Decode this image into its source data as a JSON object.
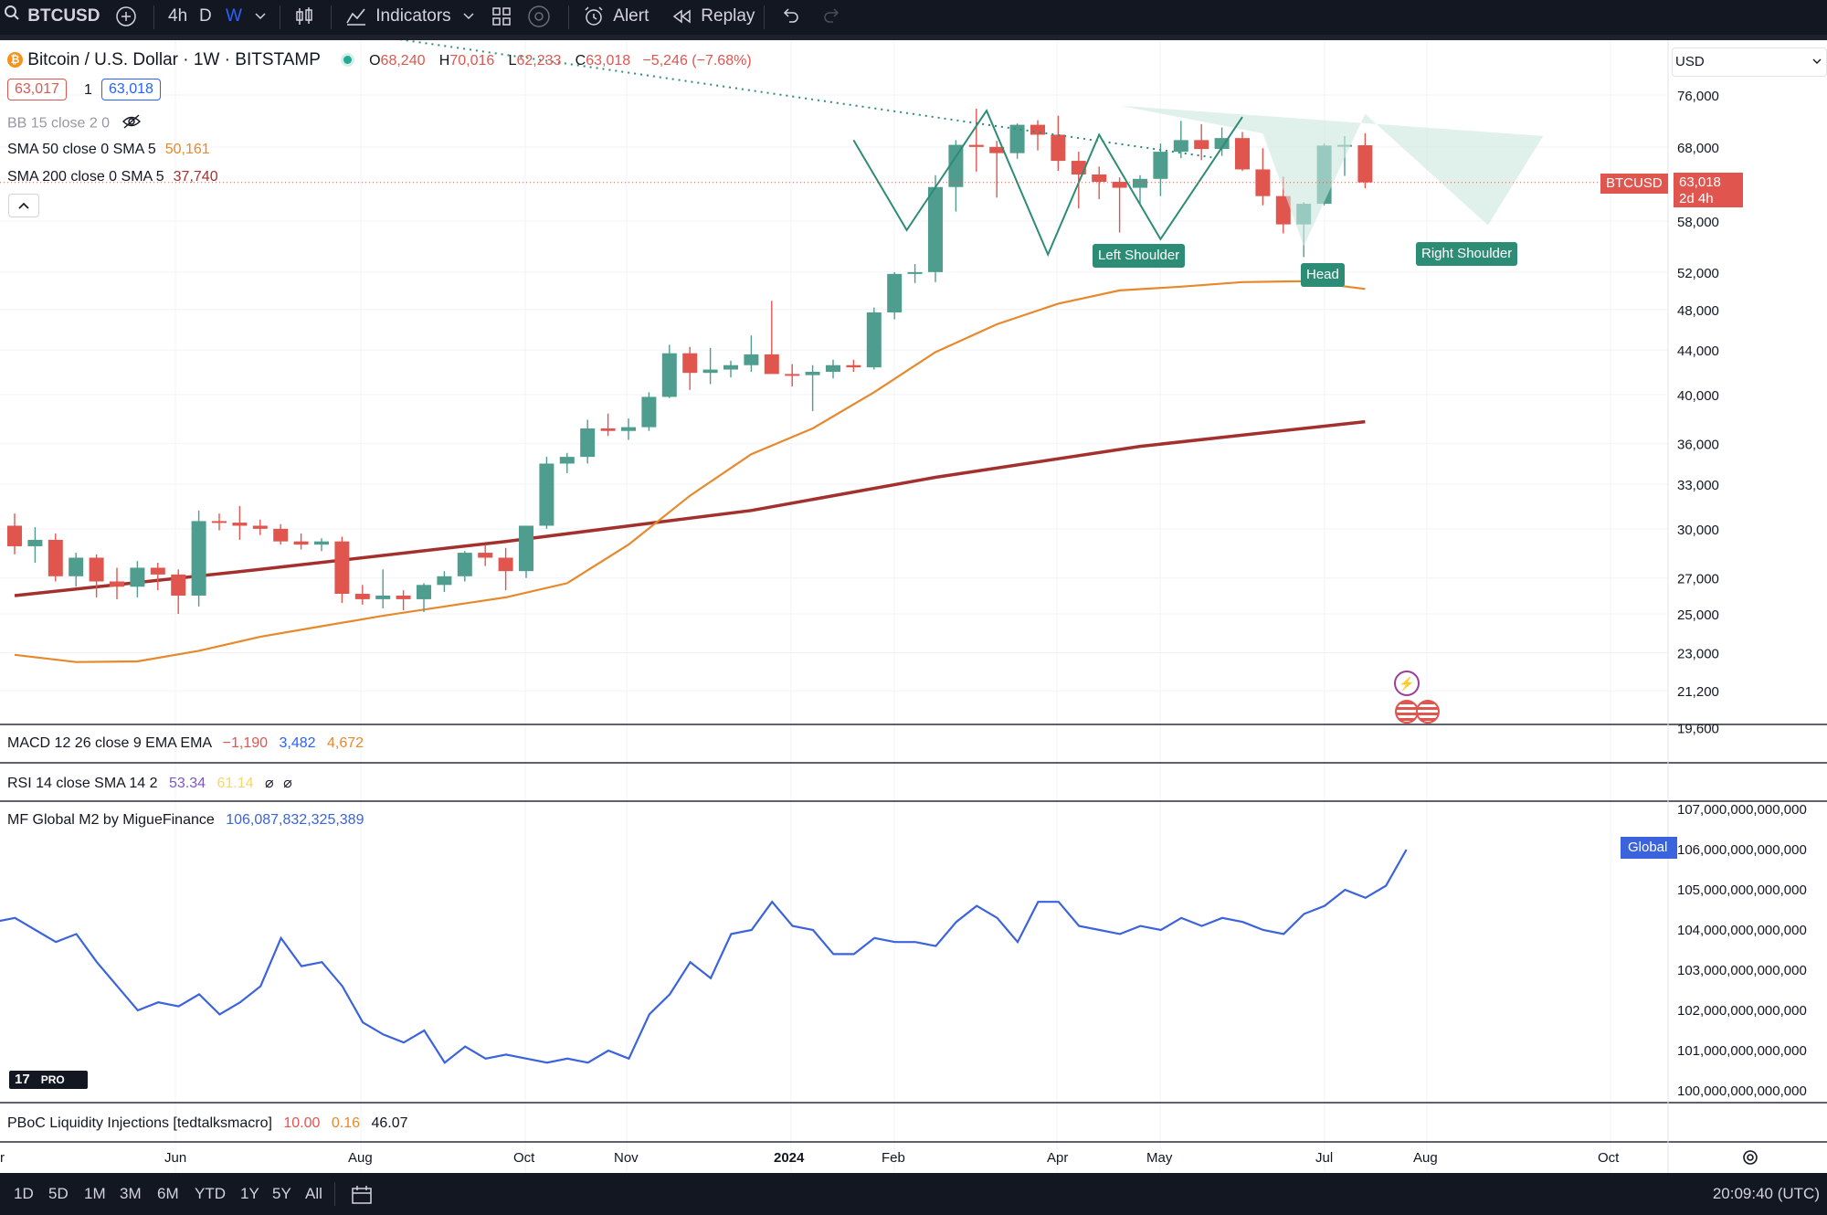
{
  "toolbar": {
    "symbol": "BTCUSD",
    "intervals": [
      "4h",
      "D",
      "W"
    ],
    "active_interval": "W",
    "indicators_label": "Indicators",
    "alert_label": "Alert",
    "replay_label": "Replay"
  },
  "legend": {
    "title": "Bitcoin / U.S. Dollar · 1W · BITSTAMP",
    "ohlc": {
      "o_label": "O",
      "o": "68,240",
      "h_label": "H",
      "h": "70,016",
      "l_label": "L",
      "l": "62,233",
      "c_label": "C",
      "c": "63,018",
      "change": "−5,246 (−7.68%)"
    },
    "bid": "63,017",
    "qty": "1",
    "ask": "63,018",
    "bb": "BB 15 close 2 0",
    "sma50": {
      "label": "SMA 50 close 0 SMA 5",
      "value": "50,161"
    },
    "sma200": {
      "label": "SMA 200 close 0 SMA 5",
      "value": "37,740"
    }
  },
  "panes": {
    "macd": {
      "label": "MACD 12 26 close 9 EMA EMA",
      "v1": "−1,190",
      "v2": "3,482",
      "v3": "4,672"
    },
    "rsi": {
      "label": "RSI 14 close SMA 14 2",
      "v1": "53.34",
      "v2": "61.14"
    },
    "m2": {
      "label": "MF Global M2 by MigueFinance",
      "value": "106,087,832,325,389",
      "tag": "Global"
    },
    "pboc": {
      "label": "PBoC Liquidity Injections [tedtalksmacro]",
      "v1": "10.00",
      "v2": "0.16",
      "v3": "46.07"
    }
  },
  "price_axis": {
    "currency": "USD",
    "ticks": [
      "76,000",
      "68,000",
      "58,000",
      "52,000",
      "48,000",
      "44,000",
      "40,000",
      "36,000",
      "33,000",
      "30,000",
      "27,000",
      "25,000",
      "23,000",
      "21,200",
      "19,600"
    ],
    "last_symbol": "BTCUSD",
    "last_price": "63,018",
    "countdown": "2d 4h"
  },
  "m2_axis": {
    "ticks": [
      "107,000,000,000,000",
      "106,000,000,000,000",
      "105,000,000,000,000",
      "104,000,000,000,000",
      "103,000,000,000,000",
      "102,000,000,000,000",
      "101,000,000,000,000",
      "100,000,000,000,000"
    ]
  },
  "time_axis": [
    "Jun",
    "Aug",
    "Oct",
    "Nov",
    "2024",
    "Feb",
    "Apr",
    "May",
    "Jul",
    "Aug",
    "Oct"
  ],
  "time_axis_partial": "r",
  "annotations": {
    "left_shoulder": "Left Shoulder",
    "head": "Head",
    "right_shoulder": "Right Shoulder"
  },
  "bottom": {
    "ranges": [
      "1D",
      "5D",
      "1M",
      "3M",
      "6M",
      "YTD",
      "1Y",
      "5Y",
      "All"
    ],
    "clock": "20:09:40 (UTC)",
    "logo": "PRO"
  },
  "chart_data": {
    "type": "candlestick",
    "title": "Bitcoin / U.S. Dollar · 1W · BITSTAMP",
    "interval": "1W",
    "y_scale": "log",
    "ylim": [
      19600,
      80000
    ],
    "colors": {
      "up": "#4e9d8e",
      "down": "#e0564f",
      "sma50": "#e8882c",
      "sma200": "#a3302c",
      "m2": "#3b63dc"
    },
    "candles": [
      [
        30200,
        31000,
        28400,
        28900
      ],
      [
        28900,
        30100,
        27900,
        29300
      ],
      [
        29300,
        29700,
        26800,
        27100
      ],
      [
        27100,
        28500,
        26500,
        28200
      ],
      [
        28200,
        28400,
        25900,
        26800
      ],
      [
        26800,
        27600,
        25800,
        26500
      ],
      [
        26500,
        28000,
        25900,
        27600
      ],
      [
        27600,
        27900,
        26300,
        27200
      ],
      [
        27200,
        27500,
        25000,
        26000
      ],
      [
        26000,
        31200,
        25400,
        30500
      ],
      [
        30500,
        31000,
        29900,
        30400
      ],
      [
        30400,
        31500,
        29300,
        30200
      ],
      [
        30200,
        30600,
        29600,
        30000
      ],
      [
        30000,
        30300,
        29000,
        29200
      ],
      [
        29200,
        29700,
        28700,
        29000
      ],
      [
        29000,
        29400,
        28600,
        29200
      ],
      [
        29200,
        29500,
        25600,
        26100
      ],
      [
        26100,
        26600,
        25500,
        25800
      ],
      [
        25800,
        27500,
        25300,
        26000
      ],
      [
        26000,
        26300,
        25200,
        25800
      ],
      [
        25800,
        26700,
        25100,
        26600
      ],
      [
        26600,
        27400,
        26200,
        27100
      ],
      [
        27100,
        28600,
        26800,
        28500
      ],
      [
        28500,
        29000,
        27700,
        28200
      ],
      [
        28200,
        28800,
        26300,
        27400
      ],
      [
        27400,
        30100,
        27000,
        30200
      ],
      [
        30200,
        35000,
        30000,
        34500
      ],
      [
        34500,
        35300,
        33800,
        35000
      ],
      [
        35000,
        37900,
        34500,
        37200
      ],
      [
        37200,
        38400,
        36600,
        37000
      ],
      [
        37000,
        38000,
        36300,
        37300
      ],
      [
        37300,
        40200,
        37000,
        39800
      ],
      [
        39800,
        44500,
        39700,
        43700
      ],
      [
        43700,
        44300,
        40400,
        41900
      ],
      [
        41900,
        44200,
        40900,
        42200
      ],
      [
        42200,
        43000,
        41500,
        42600
      ],
      [
        42600,
        45400,
        42000,
        43600
      ],
      [
        43600,
        48900,
        41900,
        41800
      ],
      [
        41800,
        42700,
        40700,
        41700
      ],
      [
        41700,
        42600,
        38600,
        42000
      ],
      [
        42000,
        43100,
        41400,
        42600
      ],
      [
        42600,
        43100,
        42000,
        42400
      ],
      [
        42400,
        48200,
        42200,
        47700
      ],
      [
        47700,
        52000,
        47000,
        51800
      ],
      [
        51800,
        52900,
        50800,
        52000
      ],
      [
        52000,
        64000,
        50900,
        62400
      ],
      [
        62400,
        69000,
        59200,
        68300
      ],
      [
        68300,
        73800,
        64500,
        68000
      ],
      [
        68000,
        68900,
        61000,
        67100
      ],
      [
        67100,
        71500,
        66300,
        71300
      ],
      [
        71300,
        72000,
        67500,
        69800
      ],
      [
        69800,
        72700,
        64600,
        66000
      ],
      [
        66000,
        67300,
        59600,
        64100
      ],
      [
        64100,
        65200,
        60800,
        63100
      ],
      [
        63100,
        63700,
        56600,
        62300
      ],
      [
        62300,
        64000,
        60200,
        63500
      ],
      [
        63500,
        68500,
        61200,
        67300
      ],
      [
        67300,
        71900,
        66400,
        69000
      ],
      [
        69000,
        71400,
        66100,
        67700
      ],
      [
        67700,
        70900,
        66700,
        69300
      ],
      [
        69300,
        70200,
        64600,
        64800
      ],
      [
        64800,
        67800,
        60000,
        61200
      ],
      [
        61200,
        63800,
        56500,
        57600
      ],
      [
        57600,
        60400,
        53700,
        60200
      ],
      [
        60200,
        68500,
        60000,
        68200
      ],
      [
        68200,
        69600,
        63900,
        68300
      ],
      [
        68240,
        70016,
        62233,
        63018
      ]
    ],
    "sma50": [
      [
        0,
        22900
      ],
      [
        3,
        22550
      ],
      [
        6,
        22580
      ],
      [
        9,
        23100
      ],
      [
        12,
        23800
      ],
      [
        15,
        24350
      ],
      [
        18,
        24900
      ],
      [
        21,
        25400
      ],
      [
        24,
        25900
      ],
      [
        27,
        26700
      ],
      [
        30,
        29000
      ],
      [
        33,
        32200
      ],
      [
        36,
        35200
      ],
      [
        39,
        37200
      ],
      [
        42,
        40200
      ],
      [
        45,
        43800
      ],
      [
        48,
        46500
      ],
      [
        51,
        48600
      ],
      [
        54,
        50000
      ],
      [
        57,
        50400
      ],
      [
        60,
        50900
      ],
      [
        63,
        51000
      ],
      [
        66,
        50161
      ]
    ],
    "sma200": [
      [
        0,
        26000
      ],
      [
        12,
        27500
      ],
      [
        24,
        29200
      ],
      [
        36,
        31200
      ],
      [
        45,
        33500
      ],
      [
        55,
        35800
      ],
      [
        66,
        37740
      ]
    ],
    "m2": [
      104.2,
      104.3,
      104.0,
      103.7,
      103.9,
      103.2,
      102.6,
      102.0,
      102.2,
      102.1,
      102.4,
      101.9,
      102.2,
      102.6,
      103.8,
      103.1,
      103.2,
      102.6,
      101.7,
      101.4,
      101.2,
      101.5,
      100.7,
      101.1,
      100.8,
      100.9,
      100.8,
      100.7,
      100.8,
      100.7,
      101.0,
      100.8,
      101.9,
      102.4,
      103.2,
      102.8,
      103.9,
      104.0,
      104.7,
      104.1,
      104.0,
      103.4,
      103.4,
      103.8,
      103.7,
      103.7,
      103.6,
      104.2,
      104.6,
      104.3,
      103.7,
      104.7,
      104.7,
      104.1,
      104.0,
      103.9,
      104.1,
      104.0,
      104.3,
      104.1,
      104.3,
      104.2,
      104.0,
      103.9,
      104.4,
      104.6,
      105.0,
      104.8,
      105.1,
      106.0
    ],
    "pattern": {
      "left_shoulder": "Left Shoulder",
      "head": "Head",
      "right_shoulder": "Right Shoulder"
    }
  }
}
